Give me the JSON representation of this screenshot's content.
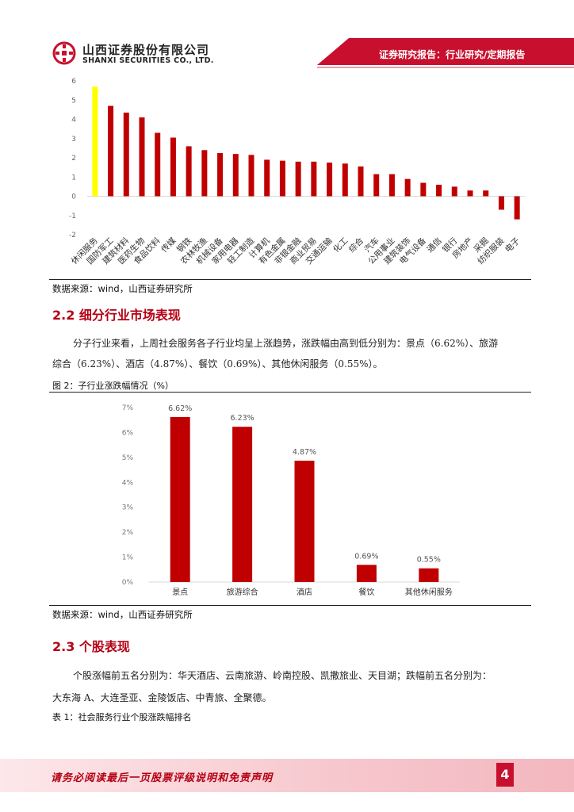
{
  "header": {
    "company_cn": "山西证券股份有限公司",
    "company_en": "SHANXI SECURITIES CO., LTD.",
    "report_type": "证券研究报告：行业研究/定期报告"
  },
  "chart1": {
    "source": "数据来源：wind，山西证券研究所"
  },
  "chart_data": [
    {
      "type": "bar",
      "categories": [
        "休闲服务",
        "国防军工",
        "建筑材料",
        "医药生物",
        "食品饮料",
        "传媒",
        "钢铁",
        "农林牧渔",
        "机械设备",
        "家用电器",
        "轻工制造",
        "计算机",
        "有色金属",
        "非银金融",
        "商业贸易",
        "交通运输",
        "化工",
        "综合",
        "汽车",
        "公用事业",
        "建筑装饰",
        "电气设备",
        "通信",
        "银行",
        "房地产",
        "采掘",
        "纺织服装",
        "电子"
      ],
      "values": [
        5.7,
        4.7,
        4.35,
        4.1,
        3.3,
        3.05,
        2.6,
        2.4,
        2.25,
        2.2,
        2.15,
        1.9,
        1.85,
        1.8,
        1.8,
        1.75,
        1.7,
        1.55,
        1.15,
        1.15,
        0.9,
        0.7,
        0.6,
        0.5,
        0.3,
        0.3,
        -0.7,
        -1.2
      ],
      "highlight_index": 0,
      "highlight_color": "#ffff00",
      "bar_color": "#c00000",
      "ylim": [
        -2,
        6
      ],
      "yticks": [
        -2,
        -1,
        0,
        1,
        2,
        3,
        4,
        5,
        6
      ],
      "grid": false
    },
    {
      "type": "bar",
      "categories": [
        "景点",
        "旅游综合",
        "酒店",
        "餐饮",
        "其他休闲服务"
      ],
      "values": [
        6.62,
        6.23,
        4.87,
        0.69,
        0.55
      ],
      "data_labels": [
        "6.62%",
        "6.23%",
        "4.87%",
        "0.69%",
        "0.55%"
      ],
      "bar_color": "#c00000",
      "ylim": [
        0,
        7
      ],
      "yticks": [
        "0%",
        "1%",
        "2%",
        "3%",
        "4%",
        "5%",
        "6%",
        "7%"
      ],
      "grid": false
    }
  ],
  "section22": {
    "title": "2.2 细分行业市场表现",
    "para_line1": "分子行业来看，上周社会服务各子行业均呈上涨趋势，涨跌幅由高到低分别为：景点（6.62%）、旅游",
    "para_line2": "综合（6.23%）、酒店（4.87%）、餐饮（0.69%）、其他休闲服务（0.55%）。",
    "figure_caption": "图 2：子行业涨跌幅情况（%）",
    "source": "数据来源：wind，山西证券研究所"
  },
  "section23": {
    "title": "2.3 个股表现",
    "para_line1": "个股涨幅前五名分别为：华天酒店、云南旅游、岭南控股、凯撒旅业、天目湖；跌幅前五名分别为：",
    "para_line2": "大东海 A、大连圣亚、金陵饭店、中青旅、全聚德。",
    "table_caption": "表 1：社会服务行业个股涨跌幅排名"
  },
  "footer": {
    "disclaimer": "请务必阅读最后一页股票评级说明和免责声明",
    "page_number": "4"
  },
  "colors": {
    "brand_red": "#b40014",
    "header_red": "#c8102e"
  }
}
